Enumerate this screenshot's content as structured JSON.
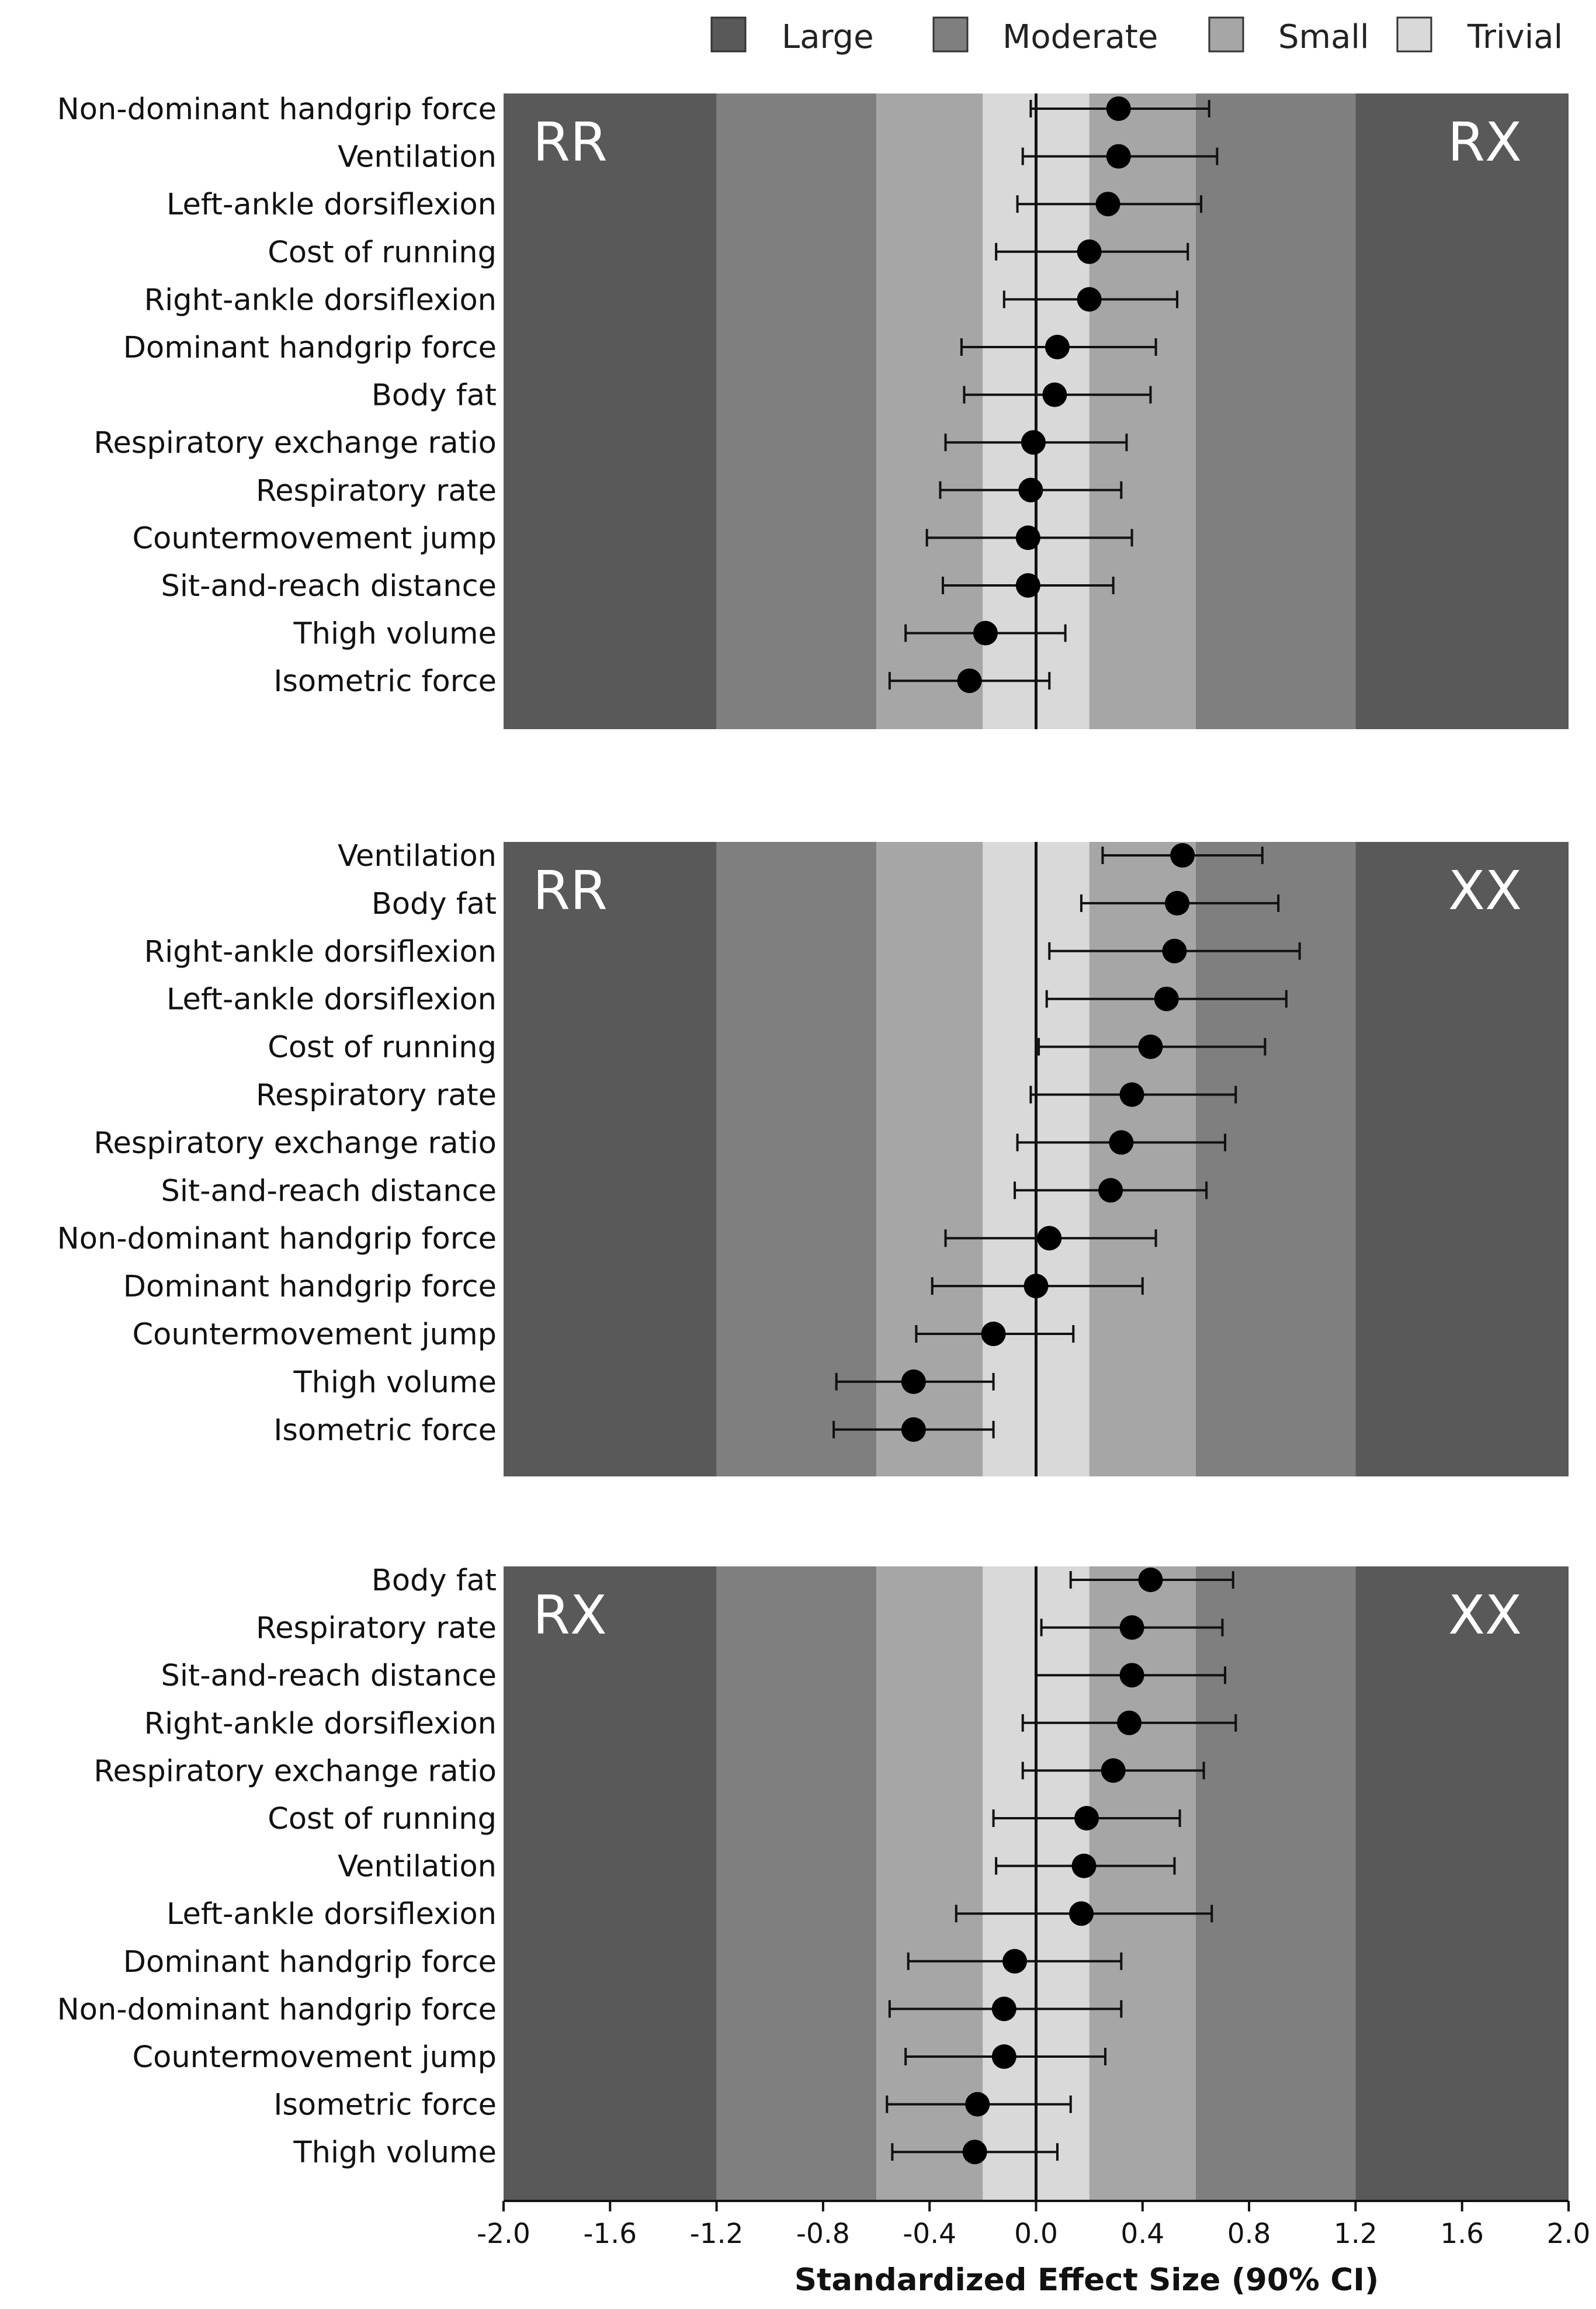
{
  "legend": {
    "items": [
      {
        "label": "Large",
        "color": "#595959"
      },
      {
        "label": "Moderate",
        "color": "#7f7f7f"
      },
      {
        "label": "Small",
        "color": "#a6a6a6"
      },
      {
        "label": "Trivial",
        "color": "#d9d9d9"
      }
    ]
  },
  "x_axis": {
    "title": "Standardized Effect Size (90% CI)",
    "ticks": [
      "-2.0",
      "-1.6",
      "-1.2",
      "-0.8",
      "-0.4",
      "0.0",
      "0.4",
      "0.8",
      "1.2",
      "1.6",
      "2.0"
    ]
  },
  "chart_data": {
    "type": "forest",
    "xlim": [
      -2.0,
      2.0
    ],
    "xlabel": "Standardized Effect Size (90% CI)",
    "bands": [
      {
        "label": "Large",
        "from": -2.0,
        "to": -1.2,
        "color": "#595959"
      },
      {
        "label": "Moderate",
        "from": -1.2,
        "to": -0.6,
        "color": "#7f7f7f"
      },
      {
        "label": "Small",
        "from": -0.6,
        "to": -0.2,
        "color": "#a6a6a6"
      },
      {
        "label": "Trivial",
        "from": -0.2,
        "to": 0.2,
        "color": "#d9d9d9"
      },
      {
        "label": "Small",
        "from": 0.2,
        "to": 0.6,
        "color": "#a6a6a6"
      },
      {
        "label": "Moderate",
        "from": 0.6,
        "to": 1.2,
        "color": "#7f7f7f"
      },
      {
        "label": "Large",
        "from": 1.2,
        "to": 2.0,
        "color": "#595959"
      }
    ],
    "panels": [
      {
        "left_label": "RR",
        "right_label": "RX",
        "rows": [
          {
            "label": "Non-dominant handgrip force",
            "est": 0.31,
            "lo": -0.02,
            "hi": 0.65
          },
          {
            "label": "Ventilation",
            "est": 0.31,
            "lo": -0.05,
            "hi": 0.68
          },
          {
            "label": "Left-ankle dorsiflexion",
            "est": 0.27,
            "lo": -0.07,
            "hi": 0.62
          },
          {
            "label": "Cost of running",
            "est": 0.2,
            "lo": -0.15,
            "hi": 0.57
          },
          {
            "label": "Right-ankle dorsiflexion",
            "est": 0.2,
            "lo": -0.12,
            "hi": 0.53
          },
          {
            "label": "Dominant handgrip force",
            "est": 0.08,
            "lo": -0.28,
            "hi": 0.45
          },
          {
            "label": "Body fat",
            "est": 0.07,
            "lo": -0.27,
            "hi": 0.43
          },
          {
            "label": "Respiratory exchange ratio",
            "est": -0.01,
            "lo": -0.34,
            "hi": 0.34
          },
          {
            "label": "Respiratory rate",
            "est": -0.02,
            "lo": -0.36,
            "hi": 0.32
          },
          {
            "label": "Countermovement jump",
            "est": -0.03,
            "lo": -0.41,
            "hi": 0.36
          },
          {
            "label": "Sit-and-reach distance",
            "est": -0.03,
            "lo": -0.35,
            "hi": 0.29
          },
          {
            "label": "Thigh volume",
            "est": -0.19,
            "lo": -0.49,
            "hi": 0.11
          },
          {
            "label": "Isometric force",
            "est": -0.25,
            "lo": -0.55,
            "hi": 0.05
          }
        ]
      },
      {
        "left_label": "RR",
        "right_label": "XX",
        "rows": [
          {
            "label": "Ventilation",
            "est": 0.55,
            "lo": 0.25,
            "hi": 0.85
          },
          {
            "label": "Body fat",
            "est": 0.53,
            "lo": 0.17,
            "hi": 0.91
          },
          {
            "label": "Right-ankle dorsiflexion",
            "est": 0.52,
            "lo": 0.05,
            "hi": 0.99
          },
          {
            "label": "Left-ankle dorsiflexion",
            "est": 0.49,
            "lo": 0.04,
            "hi": 0.94
          },
          {
            "label": "Cost of running",
            "est": 0.43,
            "lo": 0.01,
            "hi": 0.86
          },
          {
            "label": "Respiratory rate",
            "est": 0.36,
            "lo": -0.02,
            "hi": 0.75
          },
          {
            "label": "Respiratory exchange ratio",
            "est": 0.32,
            "lo": -0.07,
            "hi": 0.71
          },
          {
            "label": "Sit-and-reach distance",
            "est": 0.28,
            "lo": -0.08,
            "hi": 0.64
          },
          {
            "label": "Non-dominant handgrip force",
            "est": 0.05,
            "lo": -0.34,
            "hi": 0.45
          },
          {
            "label": "Dominant  handgrip force",
            "est": 0.0,
            "lo": -0.39,
            "hi": 0.4
          },
          {
            "label": "Countermovement jump",
            "est": -0.16,
            "lo": -0.45,
            "hi": 0.14
          },
          {
            "label": "Thigh volume",
            "est": -0.46,
            "lo": -0.75,
            "hi": -0.16
          },
          {
            "label": "Isometric force",
            "est": -0.46,
            "lo": -0.76,
            "hi": -0.16
          }
        ]
      },
      {
        "left_label": "RX",
        "right_label": "XX",
        "rows": [
          {
            "label": "Body fat",
            "est": 0.43,
            "lo": 0.13,
            "hi": 0.74
          },
          {
            "label": "Respiratory rate",
            "est": 0.36,
            "lo": 0.02,
            "hi": 0.7
          },
          {
            "label": "Sit-and-reach distance",
            "est": 0.36,
            "lo": 0.0,
            "hi": 0.71
          },
          {
            "label": "Right-ankle dorsiflexion",
            "est": 0.35,
            "lo": -0.05,
            "hi": 0.75
          },
          {
            "label": "Respiratory exchange ratio",
            "est": 0.29,
            "lo": -0.05,
            "hi": 0.63
          },
          {
            "label": "Cost of running",
            "est": 0.19,
            "lo": -0.16,
            "hi": 0.54
          },
          {
            "label": "Ventilation",
            "est": 0.18,
            "lo": -0.15,
            "hi": 0.52
          },
          {
            "label": "Left-ankle dorsiflexion",
            "est": 0.17,
            "lo": -0.3,
            "hi": 0.66
          },
          {
            "label": "Dominant handgrip force",
            "est": -0.08,
            "lo": -0.48,
            "hi": 0.32
          },
          {
            "label": "Non-dominant handgrip force",
            "est": -0.12,
            "lo": -0.55,
            "hi": 0.32
          },
          {
            "label": "Countermovement jump",
            "est": -0.12,
            "lo": -0.49,
            "hi": 0.26
          },
          {
            "label": "Isometric force",
            "est": -0.22,
            "lo": -0.56,
            "hi": 0.13
          },
          {
            "label": "Thigh volume",
            "est": -0.23,
            "lo": -0.54,
            "hi": 0.08
          }
        ]
      }
    ]
  }
}
